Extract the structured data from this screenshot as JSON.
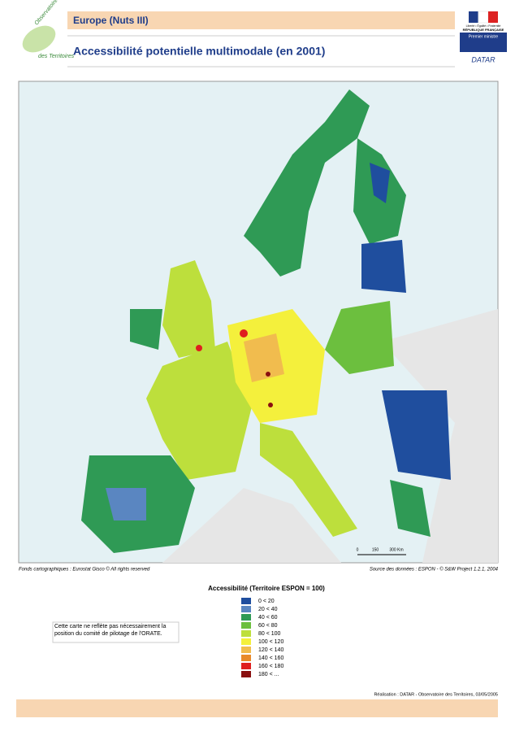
{
  "header": {
    "section": "Europe (Nuts III)",
    "title": "Accessibilité potentielle multimodale (en 2001)"
  },
  "logo_left": {
    "line1": "Observatoire",
    "line2": "des Territoires"
  },
  "logo_right": {
    "motto": "Liberté • Égalité • Fraternité",
    "republic": "RÉPUBLIQUE FRANÇAISE",
    "ministry": "Premier ministre",
    "agency": "DATAR"
  },
  "map": {
    "scale": [
      "0",
      "150",
      "300 Km"
    ]
  },
  "sources": {
    "left": "Fonds cartographiques : Eurostat Gisco © All rights reserved",
    "right": "Source des données : ESPON - © S&W Project 1.2.1, 2004"
  },
  "legend": {
    "title": "Accessibilité (Territoire ESPON = 100)",
    "items": [
      {
        "label": "0 < 20",
        "color": "#1f4e9e"
      },
      {
        "label": "20 < 40",
        "color": "#5a86c1"
      },
      {
        "label": "40 < 60",
        "color": "#2f9a55"
      },
      {
        "label": "60 < 80",
        "color": "#6cbf3e"
      },
      {
        "label": "80 < 100",
        "color": "#bddf3c"
      },
      {
        "label": "100 < 120",
        "color": "#f4f03c"
      },
      {
        "label": "120 < 140",
        "color": "#f1bc4e"
      },
      {
        "label": "140 < 160",
        "color": "#e88a2b"
      },
      {
        "label": "160 < 180",
        "color": "#df1f1f"
      },
      {
        "label": "180 < ...",
        "color": "#8a1010"
      }
    ]
  },
  "note": "Cette carte ne reflète pas nécessairement la position du comité de pilotage de l'ORATE.",
  "footer": "Réalisation : DATAR - Observatoire des Territoires, 03/05/2005"
}
